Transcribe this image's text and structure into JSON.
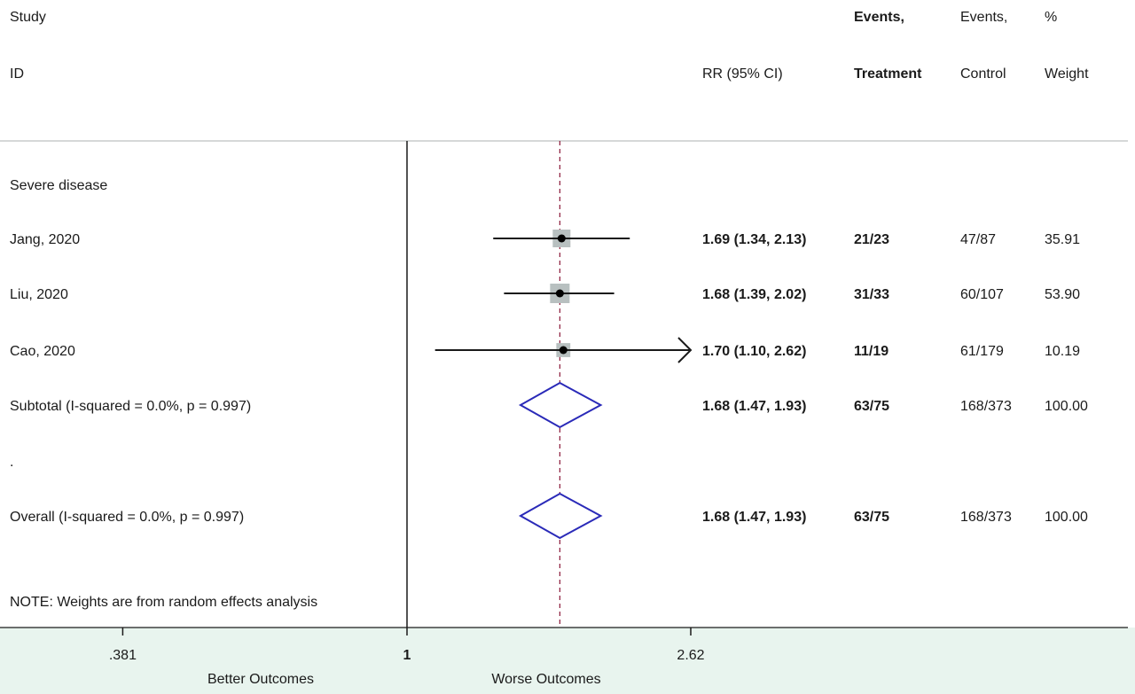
{
  "chart_data": {
    "type": "forest",
    "columns": {
      "study_line1": "Study",
      "study_line2": "ID",
      "rr": "RR (95% CI)",
      "events_t_line1": "Events,",
      "events_t_line2": "Treatment",
      "events_c_line1": "Events,",
      "events_c_line2": "Control",
      "weight_line1": "%",
      "weight_line2": "Weight"
    },
    "subgroup_label": "Severe disease",
    "studies": [
      {
        "label": "Jang, 2020",
        "rr": 1.69,
        "ci_low": 1.34,
        "ci_high": 2.13,
        "rr_text": "1.69 (1.34, 2.13)",
        "events_treatment": "21/23",
        "events_control": "47/87",
        "weight": "35.91",
        "weight_value": 35.91,
        "arrow_right": false
      },
      {
        "label": "Liu, 2020",
        "rr": 1.68,
        "ci_low": 1.39,
        "ci_high": 2.02,
        "rr_text": "1.68 (1.39, 2.02)",
        "events_treatment": "31/33",
        "events_control": "60/107",
        "weight": "53.90",
        "weight_value": 53.9,
        "arrow_right": false
      },
      {
        "label": "Cao, 2020",
        "rr": 1.7,
        "ci_low": 1.1,
        "ci_high": 2.62,
        "rr_text": "1.70 (1.10, 2.62)",
        "events_treatment": "11/19",
        "events_control": "61/179",
        "weight": "10.19",
        "weight_value": 10.19,
        "arrow_right": true
      }
    ],
    "subtotal": {
      "label": "Subtotal  (I-squared = 0.0%, p = 0.997)",
      "rr": 1.68,
      "ci_low": 1.47,
      "ci_high": 1.93,
      "rr_text": "1.68 (1.47, 1.93)",
      "events_treatment": "63/75",
      "events_control": "168/373",
      "weight": "100.00"
    },
    "spacer_label": ".",
    "overall": {
      "label": "Overall  (I-squared = 0.0%, p = 0.997)",
      "rr": 1.68,
      "ci_low": 1.47,
      "ci_high": 1.93,
      "rr_text": "1.68 (1.47, 1.93)",
      "events_treatment": "63/75",
      "events_control": "168/373",
      "weight": "100.00"
    },
    "note": "NOTE: Weights are from random effects analysis",
    "x_scale": "log",
    "x_ticks": [
      {
        "value": 0.381,
        "label": ".381"
      },
      {
        "value": 1,
        "label": "1"
      },
      {
        "value": 2.62,
        "label": "2.62"
      }
    ],
    "xlim": [
      0.381,
      2.62
    ],
    "x_left_label": "Better Outcomes",
    "x_right_label": "Worse Outcomes",
    "colors": {
      "diamond": "#2a2ab8",
      "reference_line": "#8b1a3a",
      "weight_box": "#b8c0c0",
      "bottom_band": "#e8f4ee"
    }
  }
}
